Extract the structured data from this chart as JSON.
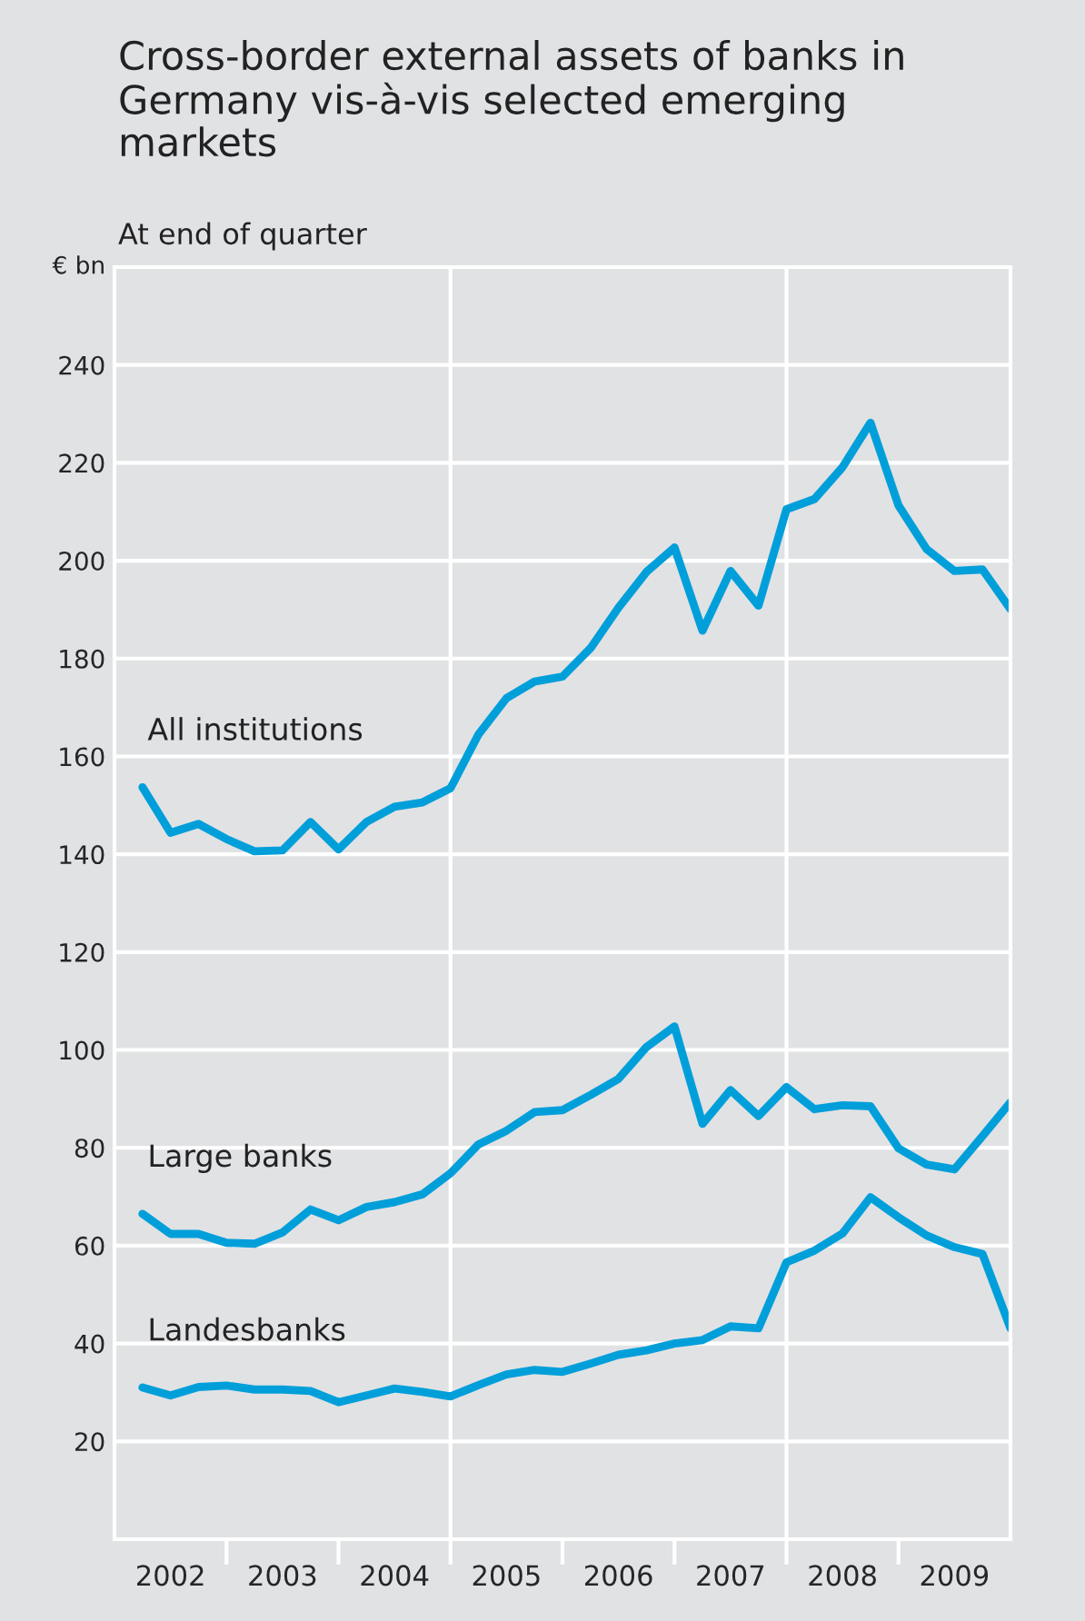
{
  "chart_data": {
    "type": "line",
    "title": "Cross-border external assets of banks in Germany vis-à-vis selected emerging markets",
    "subtitle": "At end of quarter",
    "ylabel": "€ bn",
    "x": [
      2002.25,
      2002.5,
      2002.75,
      2003.0,
      2003.25,
      2003.5,
      2003.75,
      2004.0,
      2004.25,
      2004.5,
      2004.75,
      2005.0,
      2005.25,
      2005.5,
      2005.75,
      2006.0,
      2006.25,
      2006.5,
      2006.75,
      2007.0,
      2007.25,
      2007.5,
      2007.75,
      2008.0,
      2008.25,
      2008.5,
      2008.75,
      2009.0,
      2009.25,
      2009.5,
      2009.75,
      2010.0
    ],
    "series": [
      {
        "name": "All institutions",
        "color": "#009fda",
        "values": [
          153.7,
          144.4,
          146.2,
          143.1,
          140.6,
          140.8,
          146.6,
          141.0,
          146.6,
          149.7,
          150.6,
          153.5,
          164.5,
          171.9,
          175.3,
          176.3,
          182.1,
          190.4,
          197.7,
          202.7,
          185.7,
          197.9,
          190.8,
          210.5,
          212.6,
          219.1,
          228.2,
          211.3,
          202.4,
          197.9,
          198.2,
          190.1
        ]
      },
      {
        "name": "Large banks",
        "color": "#009fda",
        "values": [
          66.5,
          62.4,
          62.4,
          60.6,
          60.4,
          62.7,
          67.4,
          65.2,
          67.9,
          68.9,
          70.5,
          74.8,
          80.7,
          83.5,
          87.3,
          87.7,
          90.8,
          94.1,
          100.6,
          104.8,
          84.9,
          91.8,
          86.5,
          92.4,
          87.9,
          88.7,
          88.5,
          79.9,
          76.6,
          75.6,
          82.4,
          89.3
        ]
      },
      {
        "name": "Landesbanks",
        "color": "#009fda",
        "values": [
          31.0,
          29.4,
          31.1,
          31.4,
          30.6,
          30.6,
          30.3,
          28.0,
          29.4,
          30.8,
          30.1,
          29.2,
          31.5,
          33.7,
          34.6,
          34.2,
          35.9,
          37.7,
          38.6,
          40.0,
          40.7,
          43.5,
          43.1,
          56.6,
          59.0,
          62.5,
          69.9,
          65.8,
          62.1,
          59.7,
          58.3,
          43.1
        ]
      }
    ],
    "xlim": [
      2002,
      2010
    ],
    "xticks": [
      {
        "value": 2002.5,
        "label": "2002"
      },
      {
        "value": 2003.5,
        "label": "2003"
      },
      {
        "value": 2004.5,
        "label": "2004"
      },
      {
        "value": 2005.5,
        "label": "2005"
      },
      {
        "value": 2006.5,
        "label": "2006"
      },
      {
        "value": 2007.5,
        "label": "2007"
      },
      {
        "value": 2008.5,
        "label": "2008"
      },
      {
        "value": 2009.5,
        "label": "2009"
      },
      {
        "value": 2003,
        "label": null
      },
      {
        "value": 2004,
        "label": null
      },
      {
        "value": 2005,
        "label": null
      },
      {
        "value": 2006,
        "label": null
      },
      {
        "value": 2007,
        "label": null
      },
      {
        "value": 2008,
        "label": null
      },
      {
        "value": 2009,
        "label": null
      }
    ],
    "ylim": [
      0,
      260
    ],
    "yticks": [
      20,
      40,
      60,
      80,
      100,
      120,
      140,
      160,
      180,
      200,
      220,
      240
    ],
    "ref_lines": [
      {
        "axis": "x",
        "value": 2005,
        "color": "#ffffff"
      },
      {
        "axis": "x",
        "value": 2008,
        "color": "#ffffff"
      }
    ],
    "grid": "y",
    "legend": false,
    "marker": "none",
    "line_style": "solid"
  }
}
